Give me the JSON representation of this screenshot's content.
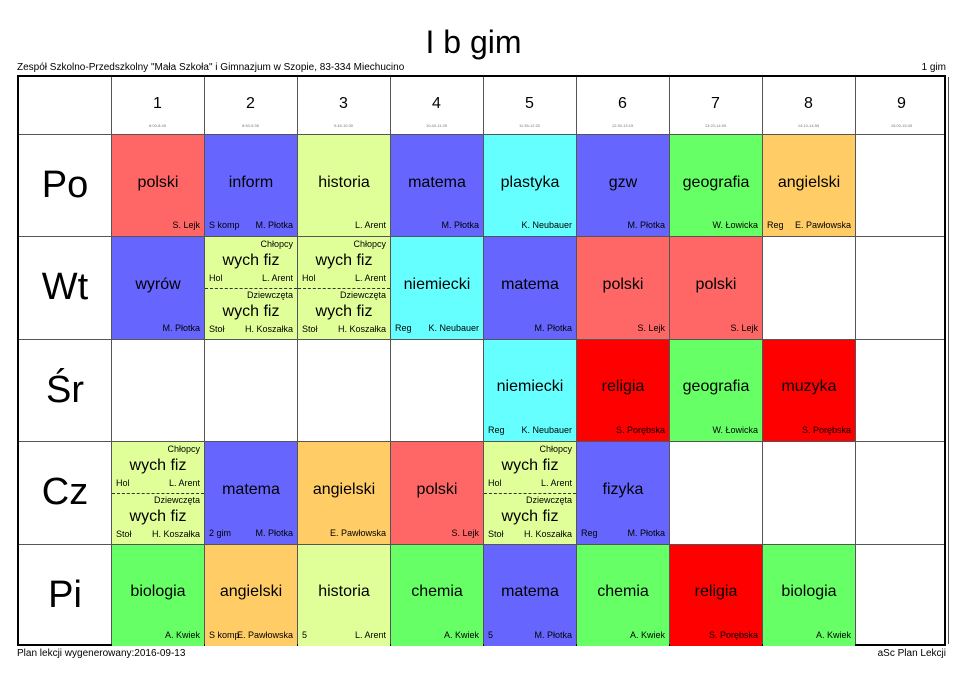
{
  "title": "I b gim",
  "school": "Zespół Szkolno-Przedszkolny \"Mała Szkoła\" i Gimnazjum w Szopie, 83-334 Miechucino",
  "class_code": "1 gim",
  "footer_left": "Plan lekcji wygenerowany:2016-09-13",
  "footer_right": "aSc Plan Lekcji",
  "periods": [
    {
      "num": "1",
      "time": "8:00-8:45"
    },
    {
      "num": "2",
      "time": "8:50-9:35"
    },
    {
      "num": "3",
      "time": "9:45-10:30"
    },
    {
      "num": "4",
      "time": "10:40-11:25"
    },
    {
      "num": "5",
      "time": "11:35-12:20"
    },
    {
      "num": "6",
      "time": "12:30-13:15"
    },
    {
      "num": "7",
      "time": "13:20-14:05"
    },
    {
      "num": "8",
      "time": "14:10-14:55"
    },
    {
      "num": "9",
      "time": "15:00-15:45"
    }
  ],
  "days": [
    "Po",
    "Wt",
    "Śr",
    "Cz",
    "Pi"
  ],
  "colors": {
    "polski": "#ff6666",
    "inform": "#6666ff",
    "historia": "#e0ff99",
    "matema": "#6666ff",
    "plastyka": "#66ffff",
    "gzw": "#6666ff",
    "geografia": "#66ff66",
    "angielski": "#ffcc66",
    "wyrow": "#6666ff",
    "wychfiz": "#e0ff99",
    "niemiecki": "#66ffff",
    "religia": "#ff0000",
    "muzyka": "#ff0000",
    "fizyka": "#6666ff",
    "biologia": "#66ff66",
    "chemia": "#66ff66"
  },
  "lessons": [
    {
      "day": 0,
      "period": 0,
      "subject": "polski",
      "teacher": "S. Lejk",
      "room": "",
      "color": "#ff6666"
    },
    {
      "day": 0,
      "period": 1,
      "subject": "inform",
      "teacher": "M. Płotka",
      "room": "S komp",
      "color": "#6666ff"
    },
    {
      "day": 0,
      "period": 2,
      "subject": "historia",
      "teacher": "L. Arent",
      "room": "",
      "color": "#e0ff99"
    },
    {
      "day": 0,
      "period": 3,
      "subject": "matema",
      "teacher": "M. Płotka",
      "room": "",
      "color": "#6666ff"
    },
    {
      "day": 0,
      "period": 4,
      "subject": "plastyka",
      "teacher": "K. Neubauer",
      "room": "",
      "color": "#66ffff"
    },
    {
      "day": 0,
      "period": 5,
      "subject": "gzw",
      "teacher": "M. Płotka",
      "room": "",
      "color": "#6666ff"
    },
    {
      "day": 0,
      "period": 6,
      "subject": "geografia",
      "teacher": "W. Łowicka",
      "room": "",
      "color": "#66ff66"
    },
    {
      "day": 0,
      "period": 7,
      "subject": "angielski",
      "teacher": "E. Pawłowska",
      "room": "Reg",
      "color": "#ffcc66"
    },
    {
      "day": 1,
      "period": 0,
      "subject": "wyrów",
      "teacher": "M. Płotka",
      "room": "",
      "color": "#6666ff"
    },
    {
      "day": 1,
      "period": 1,
      "split": true,
      "color": "#e0ff99",
      "top": {
        "group": "Chłopcy",
        "subject": "wych fiz",
        "room": "Hol",
        "teacher": "L. Arent"
      },
      "bottom": {
        "group": "Dziewczęta",
        "subject": "wych fiz",
        "room": "Stoł",
        "teacher": "H. Koszałka"
      }
    },
    {
      "day": 1,
      "period": 2,
      "split": true,
      "color": "#e0ff99",
      "top": {
        "group": "Chłopcy",
        "subject": "wych fiz",
        "room": "Hol",
        "teacher": "L. Arent"
      },
      "bottom": {
        "group": "Dziewczęta",
        "subject": "wych fiz",
        "room": "Stoł",
        "teacher": "H. Koszałka"
      }
    },
    {
      "day": 1,
      "period": 3,
      "subject": "niemiecki",
      "teacher": "K. Neubauer",
      "room": "Reg",
      "color": "#66ffff"
    },
    {
      "day": 1,
      "period": 4,
      "subject": "matema",
      "teacher": "M. Płotka",
      "room": "",
      "color": "#6666ff"
    },
    {
      "day": 1,
      "period": 5,
      "subject": "polski",
      "teacher": "S. Lejk",
      "room": "",
      "color": "#ff6666"
    },
    {
      "day": 1,
      "period": 6,
      "subject": "polski",
      "teacher": "S. Lejk",
      "room": "",
      "color": "#ff6666"
    },
    {
      "day": 2,
      "period": 4,
      "subject": "niemiecki",
      "teacher": "K. Neubauer",
      "room": "Reg",
      "color": "#66ffff"
    },
    {
      "day": 2,
      "period": 5,
      "subject": "religia",
      "teacher": "S. Porębska",
      "room": "",
      "color": "#ff0000"
    },
    {
      "day": 2,
      "period": 6,
      "subject": "geografia",
      "teacher": "W. Łowicka",
      "room": "",
      "color": "#66ff66"
    },
    {
      "day": 2,
      "period": 7,
      "subject": "muzyka",
      "teacher": "S. Porębska",
      "room": "",
      "color": "#ff0000"
    },
    {
      "day": 3,
      "period": 0,
      "split": true,
      "color": "#e0ff99",
      "top": {
        "group": "Chłopcy",
        "subject": "wych fiz",
        "room": "Hol",
        "teacher": "L. Arent"
      },
      "bottom": {
        "group": "Dziewczęta",
        "subject": "wych fiz",
        "room": "Stoł",
        "teacher": "H. Koszałka"
      }
    },
    {
      "day": 3,
      "period": 1,
      "subject": "matema",
      "teacher": "M. Płotka",
      "room": "2 gim",
      "color": "#6666ff"
    },
    {
      "day": 3,
      "period": 2,
      "subject": "angielski",
      "teacher": "E. Pawłowska",
      "room": "",
      "color": "#ffcc66"
    },
    {
      "day": 3,
      "period": 3,
      "subject": "polski",
      "teacher": "S. Lejk",
      "room": "",
      "color": "#ff6666"
    },
    {
      "day": 3,
      "period": 4,
      "split": true,
      "color": "#e0ff99",
      "top": {
        "group": "Chłopcy",
        "subject": "wych fiz",
        "room": "Hol",
        "teacher": "L. Arent"
      },
      "bottom": {
        "group": "Dziewczęta",
        "subject": "wych fiz",
        "room": "Stoł",
        "teacher": "H. Koszałka"
      }
    },
    {
      "day": 3,
      "period": 5,
      "subject": "fizyka",
      "teacher": "M. Płotka",
      "room": "Reg",
      "color": "#6666ff"
    },
    {
      "day": 4,
      "period": 0,
      "subject": "biologia",
      "teacher": "A. Kwiek",
      "room": "",
      "color": "#66ff66"
    },
    {
      "day": 4,
      "period": 1,
      "subject": "angielski",
      "teacher": "E. Pawłowska",
      "room": "S komp",
      "color": "#ffcc66"
    },
    {
      "day": 4,
      "period": 2,
      "subject": "historia",
      "teacher": "L. Arent",
      "room": "5",
      "color": "#e0ff99"
    },
    {
      "day": 4,
      "period": 3,
      "subject": "chemia",
      "teacher": "A. Kwiek",
      "room": "",
      "color": "#66ff66"
    },
    {
      "day": 4,
      "period": 4,
      "subject": "matema",
      "teacher": "M. Płotka",
      "room": "5",
      "color": "#6666ff"
    },
    {
      "day": 4,
      "period": 5,
      "subject": "chemia",
      "teacher": "A. Kwiek",
      "room": "",
      "color": "#66ff66"
    },
    {
      "day": 4,
      "period": 6,
      "subject": "religia",
      "teacher": "S. Porębska",
      "room": "",
      "color": "#ff0000"
    },
    {
      "day": 4,
      "period": 7,
      "subject": "biologia",
      "teacher": "A. Kwiek",
      "room": "",
      "color": "#66ff66"
    }
  ]
}
